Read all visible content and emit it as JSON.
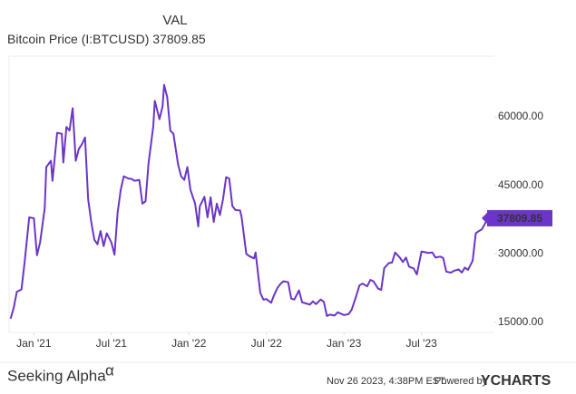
{
  "chart_data": {
    "type": "line",
    "title": "VAL",
    "x": [
      2020.85,
      2020.87,
      2020.89,
      2020.92,
      2020.94,
      2020.97,
      2021.0,
      2021.02,
      2021.04,
      2021.07,
      2021.08,
      2021.11,
      2021.12,
      2021.15,
      2021.18,
      2021.19,
      2021.21,
      2021.23,
      2021.25,
      2021.27,
      2021.29,
      2021.31,
      2021.33,
      2021.35,
      2021.37,
      2021.39,
      2021.41,
      2021.43,
      2021.45,
      2021.47,
      2021.5,
      2021.52,
      2021.54,
      2021.56,
      2021.58,
      2021.61,
      2021.63,
      2021.65,
      2021.68,
      2021.7,
      2021.72,
      2021.74,
      2021.77,
      2021.78,
      2021.81,
      2021.83,
      2021.84,
      2021.86,
      2021.88,
      2021.9,
      2021.93,
      2021.95,
      2021.97,
      2021.99,
      2022.01,
      2022.04,
      2022.06,
      2022.07,
      2022.1,
      2022.12,
      2022.14,
      2022.16,
      2022.18,
      2022.2,
      2022.22,
      2022.24,
      2022.26,
      2022.28,
      2022.3,
      2022.33,
      2022.34,
      2022.37,
      2022.39,
      2022.42,
      2022.43,
      2022.46,
      2022.48,
      2022.5,
      2022.53,
      2022.55,
      2022.57,
      2022.59,
      2022.61,
      2022.64,
      2022.66,
      2022.68,
      2022.71,
      2022.73,
      2022.76,
      2022.78,
      2022.8,
      2022.82,
      2022.85,
      2022.87,
      2022.89,
      2022.91,
      2022.94,
      2022.96,
      2022.98,
      2023.0,
      2023.03,
      2023.05,
      2023.08,
      2023.1,
      2023.12,
      2023.15,
      2023.17,
      2023.19,
      2023.22,
      2023.24,
      2023.26,
      2023.29,
      2023.31,
      2023.33,
      2023.36,
      2023.38,
      2023.4,
      2023.42,
      2023.45,
      2023.47,
      2023.5,
      2023.52,
      2023.54,
      2023.57,
      2023.59,
      2023.62,
      2023.64,
      2023.66,
      2023.69,
      2023.71,
      2023.74,
      2023.76,
      2023.78,
      2023.8,
      2023.83,
      2023.85,
      2023.87,
      2023.89,
      2023.92,
      2023.94,
      2023.96
    ],
    "series": [
      {
        "name": "Bitcoin Price (I:BTCUSD)",
        "color": "#6b35c9",
        "values": [
          15800,
          18200,
          21700,
          22200,
          28100,
          38000,
          37800,
          29700,
          32500,
          40000,
          49000,
          50400,
          46000,
          56500,
          56300,
          50000,
          57800,
          57000,
          61900,
          50400,
          53000,
          54000,
          55500,
          42000,
          37000,
          33100,
          32100,
          35000,
          31700,
          34500,
          32500,
          29800,
          39000,
          44000,
          47000,
          46500,
          46400,
          46000,
          46200,
          41000,
          41500,
          50000,
          57900,
          63500,
          59500,
          62300,
          67000,
          64300,
          57000,
          56300,
          49600,
          47000,
          46200,
          49000,
          44000,
          41000,
          36000,
          40400,
          42500,
          38000,
          42400,
          37000,
          41000,
          38500,
          42000,
          46800,
          46500,
          40500,
          39600,
          39500,
          38000,
          30000,
          29500,
          29000,
          30300,
          21500,
          20000,
          20100,
          19300,
          21000,
          22500,
          23400,
          24000,
          23800,
          20200,
          20000,
          22000,
          19400,
          19100,
          18900,
          19600,
          19000,
          20000,
          19500,
          16400,
          16700,
          16500,
          17200,
          16900,
          16600,
          16800,
          17800,
          20900,
          23100,
          23500,
          22900,
          24300,
          24000,
          22400,
          22100,
          26900,
          28000,
          28100,
          30300,
          29200,
          28200,
          29200,
          27200,
          26800,
          25500,
          30500,
          30400,
          30200,
          30300,
          29200,
          29400,
          29100,
          26100,
          25900,
          26300,
          26600,
          25900,
          27000,
          26500,
          28500,
          34500,
          35000,
          35400,
          37300,
          36900,
          37809.85
        ]
      }
    ],
    "xlim": [
      2020.84,
      2023.97
    ],
    "xticks": [
      {
        "value": 2021,
        "label": "Jan '21"
      },
      {
        "value": 2021.5,
        "label": "Jul '21"
      },
      {
        "value": 2022,
        "label": "Jan '22"
      },
      {
        "value": 2022.5,
        "label": "Jul '22"
      },
      {
        "value": 2023,
        "label": "Jan '23"
      },
      {
        "value": 2023.5,
        "label": "Jul '23"
      }
    ],
    "ylim": [
      12800,
      73300
    ],
    "yticks": [
      {
        "value": 15000,
        "label": "15000.00"
      },
      {
        "value": 30000,
        "label": "30000.00"
      },
      {
        "value": 45000,
        "label": "45000.00"
      },
      {
        "value": 60000,
        "label": "60000.00"
      }
    ],
    "grid": false
  },
  "footer": {
    "brand": "Seeking Alpha",
    "brand_mark": "α",
    "timestamp": "Nov 26 2023, 4:38PM EST.",
    "powered": "Powered by",
    "provider": "YCHARTS"
  }
}
